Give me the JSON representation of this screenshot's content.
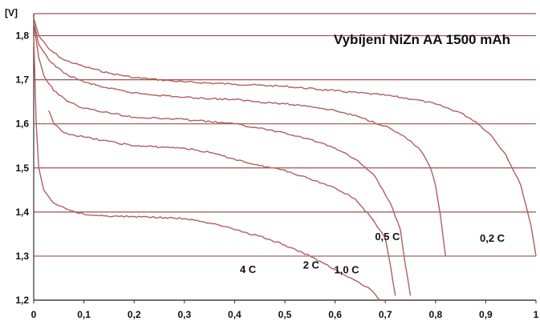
{
  "chart_data": {
    "type": "line",
    "title": "Vybíjení NiZn AA 1500 mAh",
    "ylabel": "[V]",
    "xlabel": "",
    "xlim": [
      0,
      1
    ],
    "ylim": [
      1.2,
      1.85
    ],
    "grid": "horizontal",
    "legend": "none",
    "x_ticks": [
      "0",
      "0,1",
      "0,2",
      "0,3",
      "0,4",
      "0,5",
      "0,6",
      "0,7",
      "0,8",
      "0,9",
      "1"
    ],
    "y_ticks": [
      "1,2",
      "1,3",
      "1,4",
      "1,5",
      "1,6",
      "1,7",
      "1,8"
    ],
    "colors": {
      "line": "#b06060",
      "grid": "#a05050",
      "axis": "#333333",
      "background": "#ffffff"
    },
    "series": [
      {
        "name": "0,2 C",
        "x": [
          0,
          0.01,
          0.03,
          0.06,
          0.1,
          0.15,
          0.2,
          0.3,
          0.4,
          0.5,
          0.6,
          0.7,
          0.76,
          0.8,
          0.85,
          0.88,
          0.91,
          0.94,
          0.97,
          0.99,
          1.0
        ],
        "y": [
          1.84,
          1.8,
          1.77,
          1.745,
          1.73,
          1.715,
          1.705,
          1.695,
          1.69,
          1.685,
          1.675,
          1.665,
          1.655,
          1.645,
          1.625,
          1.605,
          1.575,
          1.53,
          1.46,
          1.37,
          1.3
        ]
      },
      {
        "name": "0,5 C",
        "x": [
          0,
          0.01,
          0.03,
          0.06,
          0.1,
          0.15,
          0.2,
          0.3,
          0.4,
          0.5,
          0.55,
          0.6,
          0.65,
          0.7,
          0.74,
          0.77,
          0.79,
          0.8,
          0.81,
          0.82
        ],
        "y": [
          1.83,
          1.78,
          1.745,
          1.715,
          1.695,
          1.68,
          1.67,
          1.66,
          1.655,
          1.645,
          1.64,
          1.63,
          1.615,
          1.595,
          1.57,
          1.54,
          1.5,
          1.46,
          1.39,
          1.3
        ]
      },
      {
        "name": "1,0 C",
        "x": [
          0,
          0.01,
          0.02,
          0.04,
          0.07,
          0.1,
          0.15,
          0.2,
          0.3,
          0.4,
          0.45,
          0.5,
          0.55,
          0.6,
          0.64,
          0.68,
          0.71,
          0.73,
          0.74,
          0.75
        ],
        "y": [
          1.83,
          1.75,
          1.71,
          1.675,
          1.65,
          1.635,
          1.625,
          1.615,
          1.61,
          1.6,
          1.59,
          1.58,
          1.565,
          1.545,
          1.52,
          1.48,
          1.42,
          1.36,
          1.28,
          1.21
        ]
      },
      {
        "name": "2 C",
        "x": [
          0.03,
          0.04,
          0.06,
          0.1,
          0.15,
          0.2,
          0.3,
          0.35,
          0.4,
          0.45,
          0.5,
          0.55,
          0.6,
          0.64,
          0.67,
          0.7,
          0.71,
          0.72
        ],
        "y": [
          1.63,
          1.6,
          1.58,
          1.57,
          1.56,
          1.55,
          1.545,
          1.535,
          1.52,
          1.505,
          1.495,
          1.475,
          1.455,
          1.43,
          1.39,
          1.34,
          1.28,
          1.21
        ]
      },
      {
        "name": "4 C",
        "x": [
          0,
          0.005,
          0.01,
          0.02,
          0.04,
          0.07,
          0.1,
          0.15,
          0.2,
          0.3,
          0.35,
          0.4,
          0.45,
          0.5,
          0.55,
          0.6,
          0.64,
          0.67,
          0.69
        ],
        "y": [
          1.8,
          1.6,
          1.5,
          1.45,
          1.42,
          1.405,
          1.395,
          1.39,
          1.39,
          1.385,
          1.375,
          1.36,
          1.345,
          1.325,
          1.3,
          1.27,
          1.245,
          1.225,
          1.2
        ]
      }
    ]
  }
}
